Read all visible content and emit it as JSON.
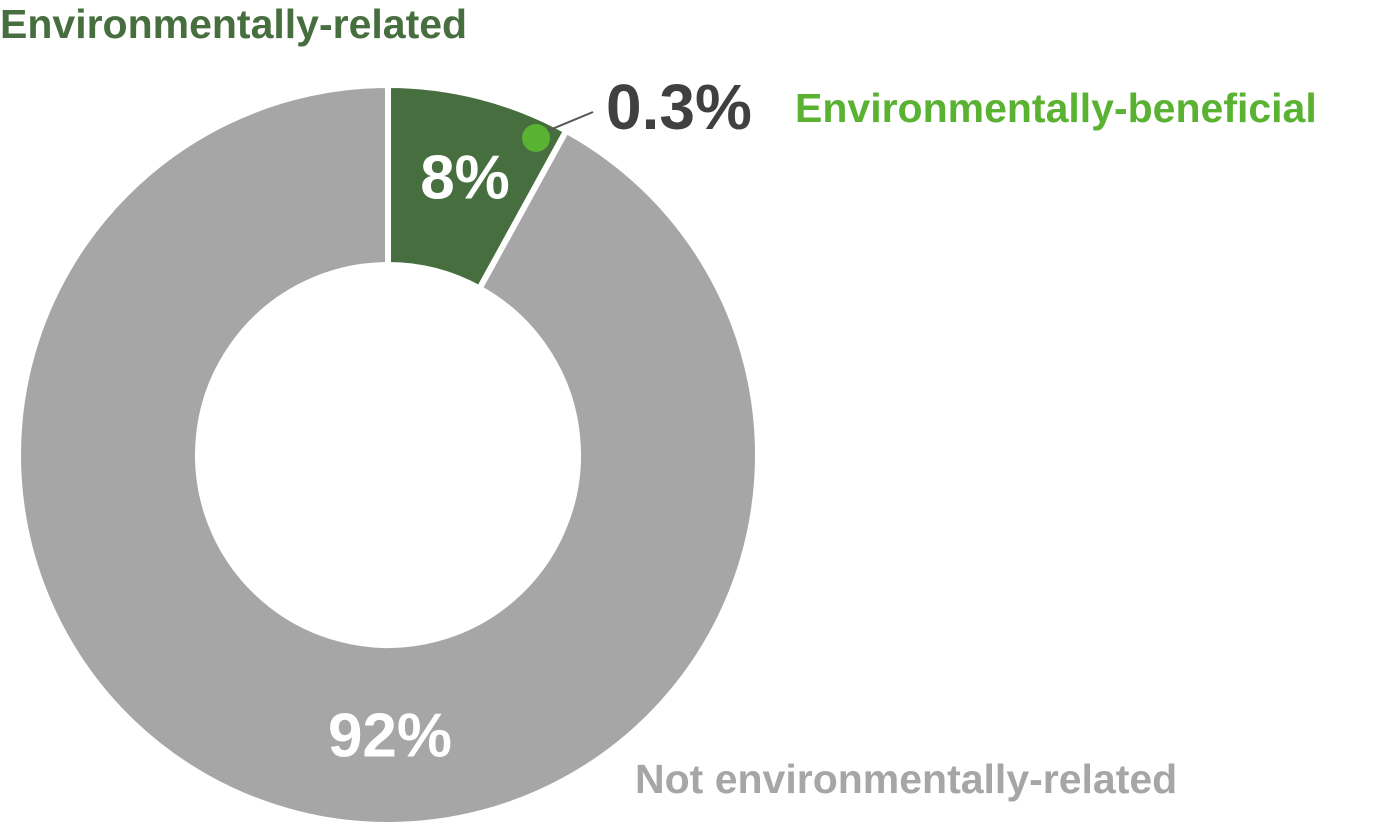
{
  "chart_data": {
    "type": "pie",
    "donut": true,
    "categories": [
      "Environmentally-related",
      "Not environmentally-related"
    ],
    "values": [
      8,
      92
    ],
    "value_labels": [
      "8%",
      "92%"
    ],
    "colors": [
      "#476e3e",
      "#a6a6a6"
    ],
    "highlight": {
      "name": "Environmentally-beneficial",
      "value": 0.3,
      "value_label": "0.3%",
      "color": "#5ab232"
    }
  }
}
